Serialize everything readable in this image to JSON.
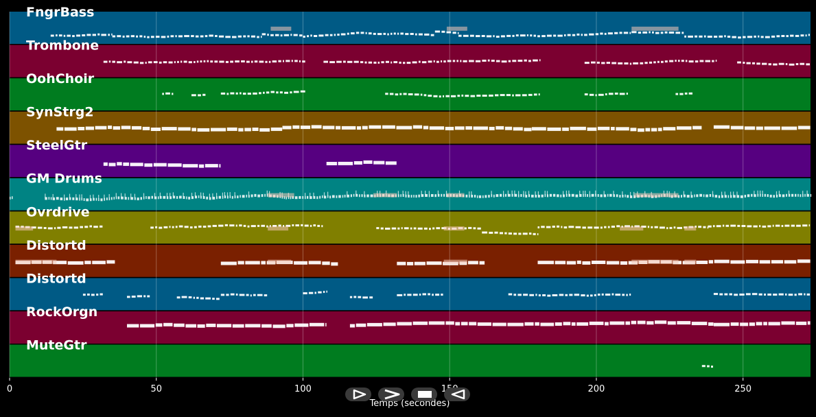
{
  "chart_data": {
    "type": "piano-roll",
    "xlabel": "Temps (secondes)",
    "xlim": [
      0,
      273
    ],
    "xticks": [
      0,
      50,
      100,
      150,
      200,
      250
    ],
    "tracks": [
      {
        "name": "FngrBass",
        "color": "#005a85",
        "style": "thin",
        "segments": [
          [
            14,
            35,
            0.72
          ],
          [
            35,
            86,
            0.74
          ],
          [
            86,
            100,
            0.68
          ],
          [
            100,
            145,
            0.74
          ],
          [
            145,
            153,
            0.6
          ],
          [
            153,
            212,
            0.74
          ],
          [
            212,
            230,
            0.6
          ],
          [
            230,
            273,
            0.74
          ]
        ],
        "highlights": [
          [
            89,
            96
          ],
          [
            149,
            156
          ],
          [
            212,
            228
          ]
        ]
      },
      {
        "name": "Trombone",
        "color": "#7b0030",
        "style": "thin",
        "segments": [
          [
            32,
            101,
            0.52
          ],
          [
            107,
            181,
            0.52
          ],
          [
            196,
            241,
            0.52
          ],
          [
            248,
            273,
            0.52
          ]
        ],
        "highlights": []
      },
      {
        "name": "OohChoir",
        "color": "#007c1f",
        "style": "thin",
        "segments": [
          [
            52,
            56,
            0.48
          ],
          [
            62,
            67,
            0.5
          ],
          [
            72,
            101,
            0.47
          ],
          [
            128,
            181,
            0.48
          ],
          [
            196,
            211,
            0.47
          ],
          [
            227,
            233,
            0.47
          ]
        ],
        "highlights": []
      },
      {
        "name": "SynStrg2",
        "color": "#7d5200",
        "style": "thick",
        "segments": [
          [
            16,
            93,
            0.52
          ],
          [
            93,
            178,
            0.48
          ],
          [
            178,
            236,
            0.5
          ],
          [
            240,
            273,
            0.47
          ]
        ],
        "highlights": []
      },
      {
        "name": "SteelGtr",
        "color": "#560080",
        "style": "thick",
        "segments": [
          [
            32,
            72,
            0.56
          ],
          [
            108,
            132,
            0.56
          ]
        ],
        "highlights": []
      },
      {
        "name": "GM Drums",
        "color": "#008383",
        "style": "dense",
        "segments": [
          [
            0,
            1,
            0.6
          ],
          [
            12,
            273,
            0.62
          ]
        ],
        "highlights": [
          [
            88,
            97
          ],
          [
            124,
            132
          ],
          [
            149,
            155
          ],
          [
            213,
            228
          ]
        ]
      },
      {
        "name": "Ovrdrive",
        "color": "#807f00",
        "style": "thin",
        "segments": [
          [
            2,
            32,
            0.45
          ],
          [
            48,
            107,
            0.5
          ],
          [
            125,
            161,
            0.5
          ],
          [
            161,
            180,
            0.62
          ],
          [
            180,
            238,
            0.48
          ],
          [
            238,
            273,
            0.45
          ]
        ],
        "highlights": [
          [
            2,
            8
          ],
          [
            88,
            95
          ],
          [
            148,
            155
          ],
          [
            208,
            216
          ],
          [
            230,
            234
          ]
        ]
      },
      {
        "name": "Distortd",
        "color": "#7a2000",
        "style": "thick",
        "segments": [
          [
            2,
            36,
            0.55
          ],
          [
            72,
            112,
            0.55
          ],
          [
            132,
            162,
            0.55
          ],
          [
            180,
            273,
            0.55
          ]
        ],
        "highlights": [
          [
            2,
            16
          ],
          [
            88,
            96
          ],
          [
            148,
            156
          ],
          [
            212,
            228
          ],
          [
            230,
            234
          ]
        ]
      },
      {
        "name": "Distortd",
        "color": "#005a85",
        "style": "thin",
        "segments": [
          [
            25,
            32,
            0.5
          ],
          [
            40,
            48,
            0.58
          ],
          [
            57,
            72,
            0.58
          ],
          [
            72,
            88,
            0.5
          ],
          [
            100,
            108,
            0.45
          ],
          [
            116,
            124,
            0.58
          ],
          [
            132,
            148,
            0.5
          ],
          [
            170,
            212,
            0.5
          ],
          [
            240,
            273,
            0.48
          ]
        ],
        "highlights": []
      },
      {
        "name": "RockOrgn",
        "color": "#7b0030",
        "style": "thick",
        "segments": [
          [
            40,
            108,
            0.45
          ],
          [
            116,
            240,
            0.43
          ],
          [
            240,
            273,
            0.4
          ]
        ],
        "highlights": []
      },
      {
        "name": "MuteGtr",
        "color": "#007c1f",
        "style": "thin",
        "segments": [
          [
            236,
            240,
            0.65
          ]
        ],
        "highlights": []
      }
    ]
  },
  "transport": {
    "buttons": [
      {
        "name": "play-button",
        "icon": "play-outline-icon"
      },
      {
        "name": "fast-forward-button",
        "icon": "chevron-right-icon"
      },
      {
        "name": "stop-button",
        "icon": "stop-icon"
      },
      {
        "name": "rewind-button",
        "icon": "rewind-icon"
      }
    ]
  },
  "colors": {
    "background": "#000000",
    "note": "#ffffff",
    "grid": "#ffffff",
    "button": "#3a3a3a"
  }
}
